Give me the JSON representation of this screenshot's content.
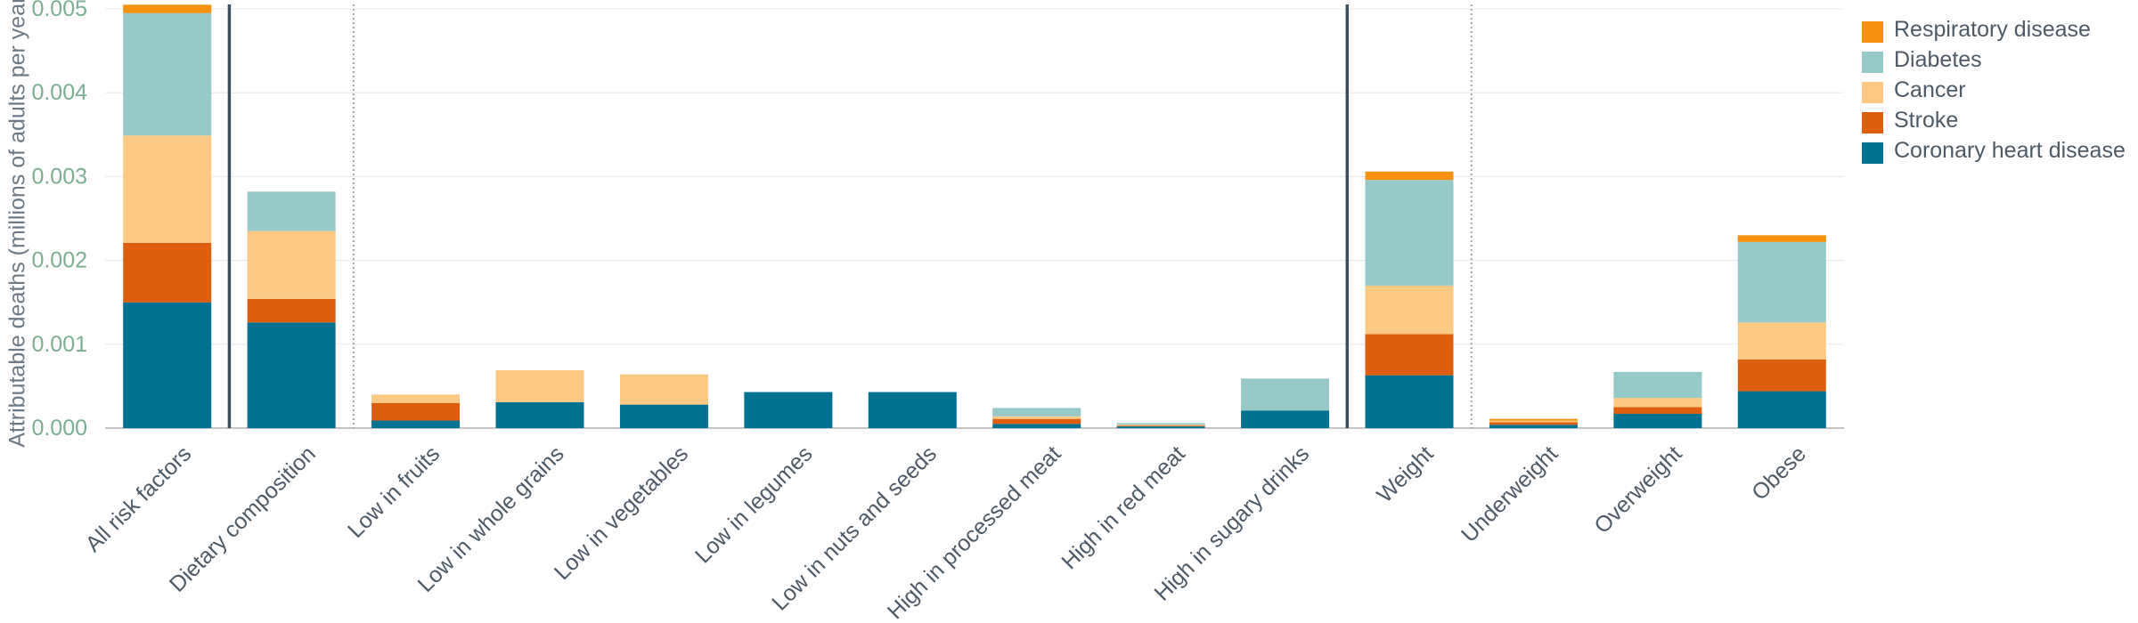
{
  "chart_data": {
    "type": "bar",
    "stacked": true,
    "ylabel": "Attributable deaths (millions of adults per year)",
    "xlabel": "",
    "ylim": [
      0,
      0.005
    ],
    "yticks": [
      "0.000",
      "0.001",
      "0.002",
      "0.003",
      "0.004",
      "0.005"
    ],
    "grid": true,
    "legend_position": "top-right",
    "categories": [
      "All risk factors",
      "Dietary composition",
      "Low in fruits",
      "Low in whole grains",
      "Low in vegetables",
      "Low in legumes",
      "Low in nuts and seeds",
      "High in processed meat",
      "High in red meat",
      "High in sugary drinks",
      "Weight",
      "Underweight",
      "Overweight",
      "Obese"
    ],
    "group_separators": {
      "solid_after": [
        "All risk factors",
        "High in sugary drinks"
      ],
      "dotted_after": [
        "Dietary composition",
        "Weight"
      ]
    },
    "series": [
      {
        "name": "Coronary heart disease",
        "color": "#00718f",
        "values": [
          0.0015,
          0.00126,
          9e-05,
          0.00031,
          0.00028,
          0.00043,
          0.00043,
          5e-05,
          2e-05,
          0.00021,
          0.00063,
          4e-05,
          0.00017,
          0.00044
        ]
      },
      {
        "name": "Stroke",
        "color": "#dd5e0f",
        "values": [
          0.00071,
          0.00028,
          0.00021,
          0.0,
          0.0,
          0.0,
          0.0,
          6e-05,
          1e-05,
          0.0,
          0.00049,
          3e-05,
          8e-05,
          0.00038
        ]
      },
      {
        "name": "Cancer",
        "color": "#fbc983",
        "values": [
          0.00128,
          0.00081,
          0.0001,
          0.00038,
          0.00036,
          0.0,
          0.0,
          3e-05,
          1e-05,
          0.0,
          0.00058,
          2e-05,
          0.00011,
          0.00044
        ]
      },
      {
        "name": "Diabetes",
        "color": "#96c9c7",
        "values": [
          0.00146,
          0.00047,
          0.0,
          0.0,
          0.0,
          0.0,
          0.0,
          0.0001,
          2e-05,
          0.00038,
          0.00126,
          0.0,
          0.00031,
          0.00096
        ]
      },
      {
        "name": "Respiratory disease",
        "color": "#f6900f",
        "values": [
          0.0001,
          0.0,
          0.0,
          0.0,
          0.0,
          0.0,
          0.0,
          0.0,
          0.0,
          0.0,
          0.0001,
          2e-05,
          0.0,
          8e-05
        ]
      }
    ]
  },
  "legend": {
    "items": [
      {
        "label": "Respiratory disease",
        "color": "#f6900f"
      },
      {
        "label": "Diabetes",
        "color": "#96c9c7"
      },
      {
        "label": "Cancer",
        "color": "#fbc983"
      },
      {
        "label": "Stroke",
        "color": "#dd5e0f"
      },
      {
        "label": "Coronary heart disease",
        "color": "#00718f"
      }
    ]
  }
}
